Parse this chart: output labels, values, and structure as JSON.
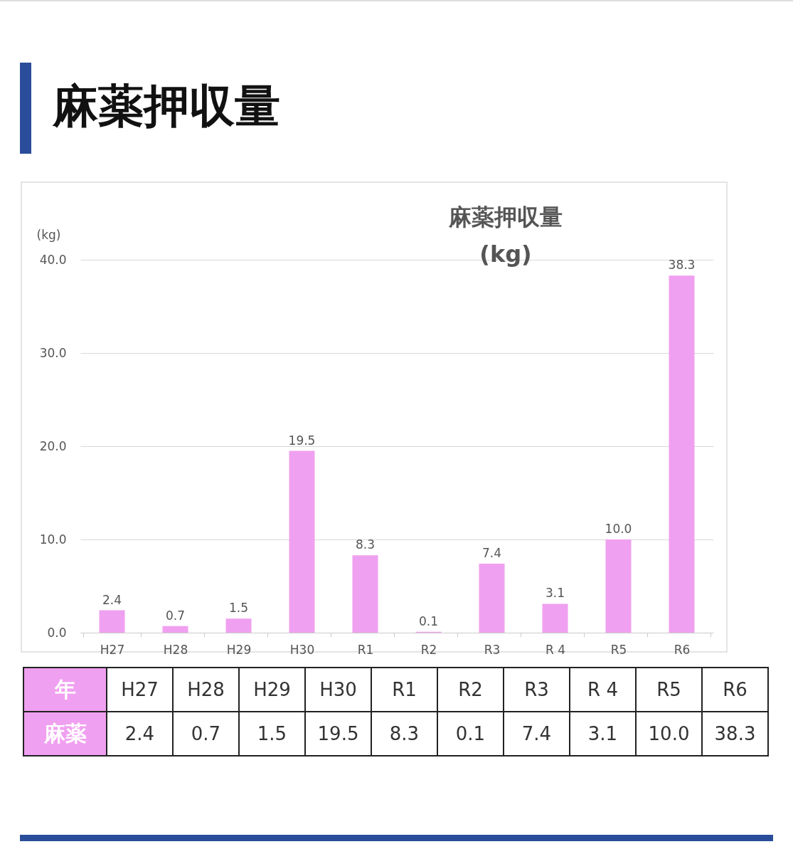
{
  "chart_data": {
    "type": "bar",
    "title": "麻薬押収量",
    "subtitle": "麻薬押収量\n(kg)",
    "ylabel": "(kg)",
    "categories": [
      "H27",
      "H28",
      "H29",
      "H30",
      "R1",
      "R2",
      "R3",
      "R 4",
      "R5",
      "R6"
    ],
    "values": [
      2.4,
      0.7,
      1.5,
      19.5,
      8.3,
      0.1,
      7.4,
      3.1,
      10.0,
      38.3
    ],
    "value_labels": [
      "2.4",
      "0.7",
      "1.5",
      "19.5",
      "8.3",
      "0.1",
      "7.4",
      "3.1",
      "10.0",
      "38.3"
    ],
    "annotations": [
      "年",
      "麻薬"
    ],
    "color": "#f0a0f0",
    "ylim": [
      0,
      40
    ],
    "yticks": [
      {
        "value": 0,
        "label": "0.0"
      },
      {
        "value": 10,
        "label": "10.0"
      },
      {
        "value": 20,
        "label": "20.0"
      },
      {
        "value": 30,
        "label": "30.0"
      },
      {
        "value": 40,
        "label": "40.0"
      }
    ],
    "grid": "y"
  }
}
